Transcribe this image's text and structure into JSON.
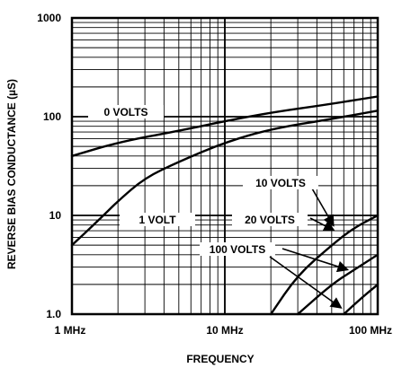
{
  "chart_data": {
    "type": "line",
    "title": "",
    "xlabel": "FREQUENCY",
    "ylabel": "REVERSE BIAS CONDUCTANCE (µS)",
    "x_scale": "log",
    "y_scale": "log",
    "xlim": [
      1,
      100
    ],
    "ylim": [
      1,
      1000
    ],
    "x_unit": "MHz",
    "grid": true,
    "legend": "none (curves labeled inline)",
    "x_ticks": [
      "1 MHz",
      "10 MHz",
      "100 MHz"
    ],
    "y_ticks": [
      "1.0",
      "10",
      "100",
      "1000"
    ],
    "series": [
      {
        "name": "0 VOLTS",
        "x": [
          1,
          2,
          5,
          10,
          20,
          50,
          100
        ],
        "y": [
          40,
          55,
          72,
          90,
          110,
          135,
          160
        ]
      },
      {
        "name": "1 VOLT",
        "x": [
          1,
          1.5,
          2,
          3,
          5,
          10,
          20,
          50,
          100
        ],
        "y": [
          5,
          9,
          14,
          24,
          35,
          55,
          75,
          95,
          115
        ]
      },
      {
        "name": "10 VOLTS",
        "x": [
          20,
          30,
          50,
          70,
          100
        ],
        "y": [
          1,
          2.5,
          5,
          7.5,
          10
        ]
      },
      {
        "name": "20 VOLTS",
        "x": [
          30,
          50,
          70,
          100
        ],
        "y": [
          1,
          2,
          2.8,
          4
        ]
      },
      {
        "name": "100 VOLTS",
        "x": [
          60,
          80,
          100
        ],
        "y": [
          1,
          1.5,
          2
        ]
      }
    ]
  }
}
